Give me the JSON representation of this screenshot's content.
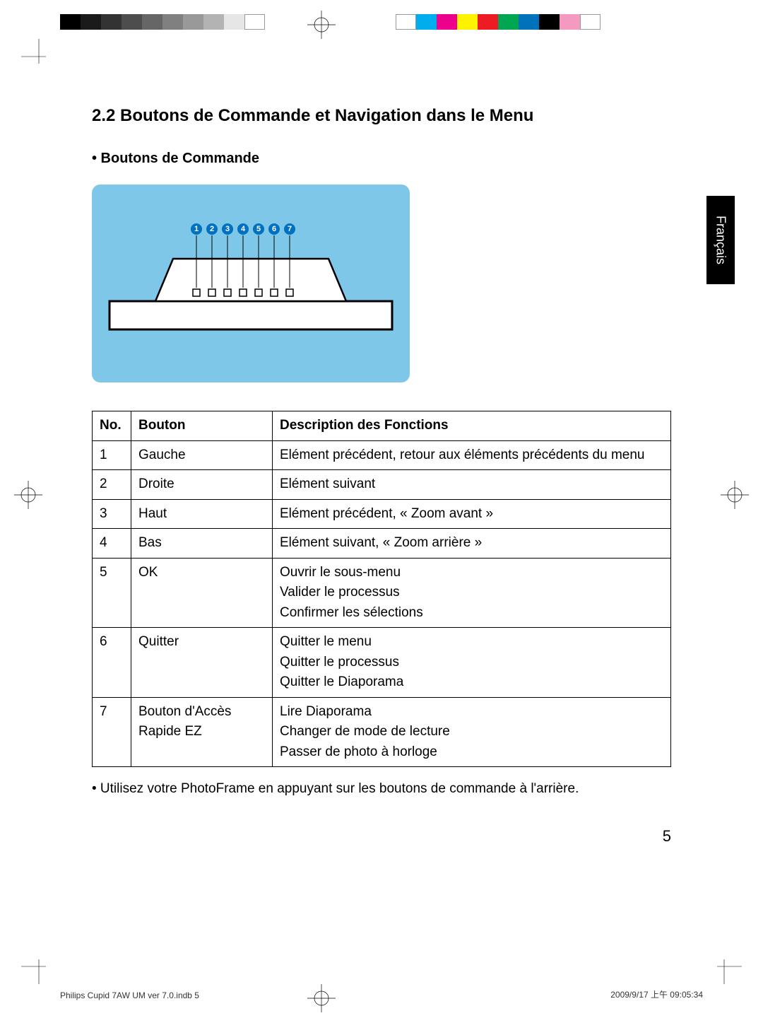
{
  "section_title": "2.2 Boutons de Commande et Navigation dans le Menu",
  "subsection_bullet": "• Boutons de Commande",
  "language_tab": "Français",
  "diagram": {
    "background_color": "#7ec7e8",
    "label_circle_color": "#0070c0",
    "labels": [
      "1",
      "2",
      "3",
      "4",
      "5",
      "6",
      "7"
    ]
  },
  "table": {
    "columns": [
      "No.",
      "Bouton",
      "Description des Fonctions"
    ],
    "rows": [
      [
        "1",
        "Gauche",
        "Elément précédent, retour aux éléments précédents du menu"
      ],
      [
        "2",
        "Droite",
        "Elément suivant"
      ],
      [
        "3",
        "Haut",
        "Elément précédent, « Zoom avant »"
      ],
      [
        "4",
        "Bas",
        "Elément suivant, « Zoom arrière »"
      ],
      [
        "5",
        "OK",
        "Ouvrir le sous-menu\nValider le processus\nConfirmer les sélections"
      ],
      [
        "6",
        "Quitter",
        "Quitter le menu\nQuitter le processus\nQuitter le Diaporama"
      ],
      [
        "7",
        "Bouton d'Accès Rapide EZ",
        "Lire Diaporama\nChanger de mode de lecture\nPasser de photo à horloge"
      ]
    ]
  },
  "note": "•  Utilisez votre PhotoFrame en appuyant sur les boutons de commande à l'arrière.",
  "page_number": "5",
  "footer_left": "Philips Cupid 7AW UM ver 7.0.indb   5",
  "footer_right": "2009/9/17   上午 09:05:34",
  "colorbars": {
    "left": [
      "#000000",
      "#1a1a1a",
      "#333333",
      "#4d4d4d",
      "#666666",
      "#808080",
      "#999999",
      "#b3b3b3",
      "#e6e6e6",
      "#ffffff"
    ],
    "right": [
      "#ffffff",
      "#00aeef",
      "#ec008c",
      "#fff200",
      "#ed1c24",
      "#00a651",
      "#0072bc",
      "#000000",
      "#f49ac1",
      "#ffffff"
    ]
  }
}
